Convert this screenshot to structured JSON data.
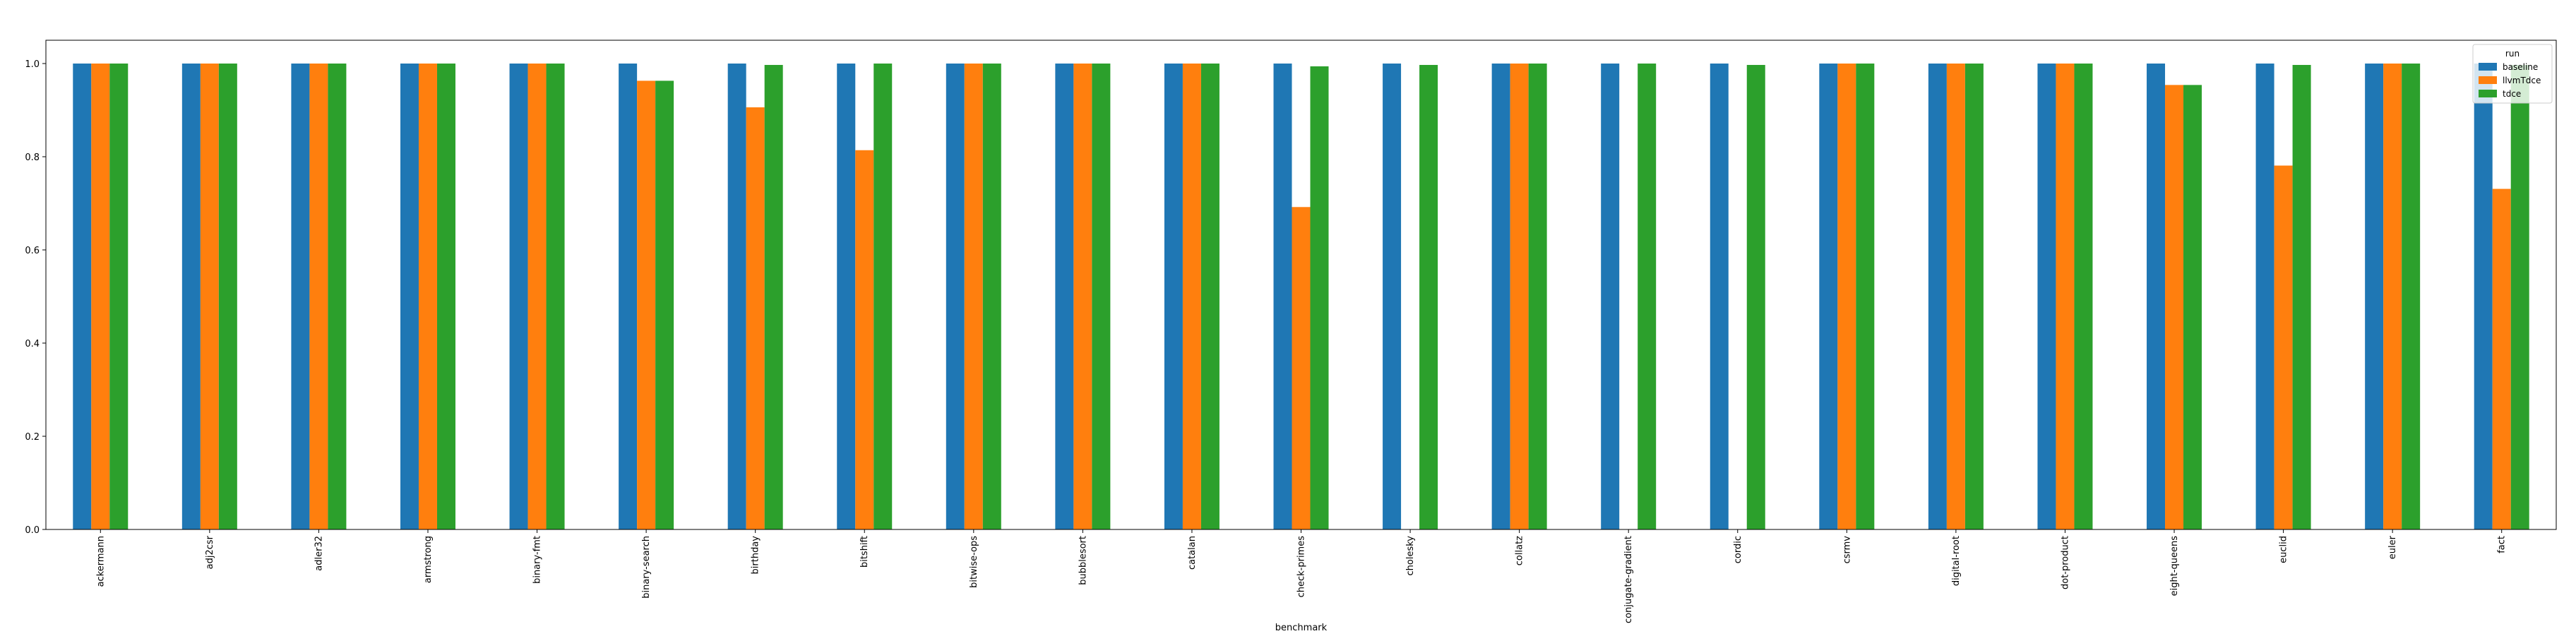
{
  "chart_data": {
    "type": "bar",
    "xlabel": "benchmark",
    "ylabel": "",
    "ylim": [
      0,
      1.05
    ],
    "yticks": [
      0.0,
      0.2,
      0.4,
      0.6,
      0.8,
      1.0
    ],
    "ytick_labels": [
      "0.0",
      "0.2",
      "0.4",
      "0.6",
      "0.8",
      "1.0"
    ],
    "grid": false,
    "legend": {
      "title": "run",
      "position": "top-right"
    },
    "categories": [
      "ackermann",
      "adj2csr",
      "adler32",
      "armstrong",
      "binary-fmt",
      "binary-search",
      "birthday",
      "bitshift",
      "bitwise-ops",
      "bubblesort",
      "catalan",
      "check-primes",
      "cholesky",
      "collatz",
      "conjugate-gradient",
      "cordic",
      "csrmv",
      "digital-root",
      "dot-product",
      "eight-queens",
      "euclid",
      "euler",
      "fact"
    ],
    "series": [
      {
        "name": "baseline",
        "color": "#1f77b4",
        "values": [
          1.0,
          1.0,
          1.0,
          1.0,
          1.0,
          1.0,
          1.0,
          1.0,
          1.0,
          1.0,
          1.0,
          1.0,
          1.0,
          1.0,
          1.0,
          1.0,
          1.0,
          1.0,
          1.0,
          1.0,
          1.0,
          1.0,
          1.0
        ]
      },
      {
        "name": "llvmTdce",
        "color": "#ff7f0e",
        "values": [
          1.0,
          1.0,
          1.0,
          1.0,
          1.0,
          0.963,
          0.906,
          0.814,
          1.0,
          1.0,
          1.0,
          0.692,
          0.0,
          1.0,
          0.0,
          0.0,
          1.0,
          1.0,
          1.0,
          0.954,
          0.781,
          1.0,
          0.731
        ]
      },
      {
        "name": "tdce",
        "color": "#2ca02c",
        "values": [
          1.0,
          1.0,
          1.0,
          1.0,
          1.0,
          0.963,
          0.997,
          1.0,
          1.0,
          1.0,
          1.0,
          0.994,
          0.997,
          1.0,
          1.0,
          0.997,
          1.0,
          1.0,
          1.0,
          0.954,
          0.997,
          1.0,
          0.997
        ]
      }
    ]
  }
}
